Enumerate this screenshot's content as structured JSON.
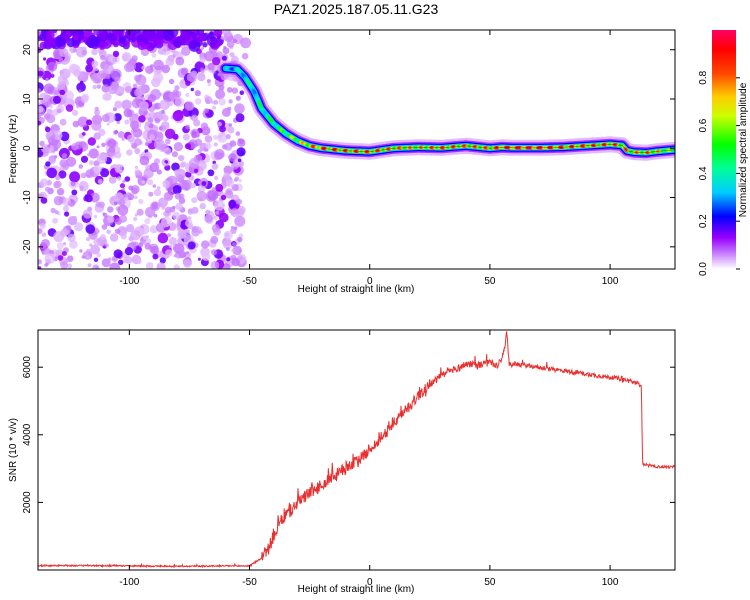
{
  "figure": {
    "title": "PAZ1.2025.187.05.11.G23"
  },
  "chart_data": [
    {
      "type": "heatmap",
      "name": "spectrogram",
      "xlabel": "Height of straight line (km)",
      "ylabel": "Frequency (Hz)",
      "xlim": [
        -138,
        127
      ],
      "ylim": [
        -24.5,
        24
      ],
      "x_ticks": [
        -100,
        -50,
        0,
        50,
        100
      ],
      "y_ticks": [
        -20,
        -10,
        0,
        10,
        20
      ],
      "colorbar": {
        "label": "Normalized spectral amplitude",
        "range": [
          0,
          1
        ],
        "ticks": [
          0.0,
          0.2,
          0.4,
          0.6,
          0.8
        ],
        "tick_labels": [
          "0.0",
          "0.2",
          "0.4",
          "0.6",
          "0.8"
        ],
        "colors": [
          "#ffffff",
          "#9900ff",
          "#0000ff",
          "#00ffff",
          "#00ff00",
          "#ffff00",
          "#ff8000",
          "#ff0000",
          "#ff0066"
        ]
      },
      "noise_region": {
        "x_from": -138,
        "x_to": -53,
        "amplitude": [
          0.05,
          0.25
        ]
      },
      "signal_track": {
        "x": [
          -60,
          -55,
          -52,
          -48,
          -45,
          -40,
          -35,
          -30,
          -25,
          -20,
          -10,
          0,
          10,
          20,
          30,
          40,
          50,
          55,
          60,
          70,
          80,
          90,
          100,
          105,
          107,
          110,
          115,
          120,
          127
        ],
        "frequency": [
          16.2,
          16.0,
          14.5,
          11.5,
          8.0,
          5.0,
          3.0,
          1.5,
          0.5,
          0.0,
          -0.5,
          -0.7,
          0.0,
          0.2,
          0.1,
          0.5,
          0.0,
          0.2,
          0.1,
          0.1,
          0.2,
          0.5,
          0.8,
          0.6,
          -0.5,
          -0.8,
          -0.9,
          -0.6,
          -0.3
        ],
        "amplitude": [
          0.35,
          0.4,
          0.45,
          0.45,
          0.5,
          0.55,
          0.6,
          0.7,
          0.85,
          0.95,
          0.9,
          0.9,
          0.85,
          0.8,
          0.9,
          0.85,
          0.85,
          0.95,
          1.0,
          1.0,
          0.95,
          0.9,
          0.9,
          0.85,
          0.85,
          0.8,
          0.85,
          0.8,
          0.6
        ]
      }
    },
    {
      "type": "line",
      "name": "snr",
      "xlabel": "Height of straight line (km)",
      "ylabel": "SNR (10 * v/v)",
      "xlim": [
        -138,
        127
      ],
      "ylim": [
        0,
        7100
      ],
      "x_ticks": [
        -100,
        -50,
        0,
        50,
        100
      ],
      "y_ticks": [
        2000,
        4000,
        6000
      ],
      "color": "#e83030",
      "series": [
        {
          "x": [
            -138,
            -120,
            -100,
            -80,
            -60,
            -50,
            -45,
            -42,
            -40,
            -38,
            -36,
            -34,
            -32,
            -30,
            -28,
            -25,
            -22,
            -20,
            -17,
            -15,
            -12,
            -10,
            -7,
            -5,
            -2,
            0,
            3,
            5,
            8,
            10,
            13,
            15,
            18,
            20,
            23,
            25,
            28,
            30,
            33,
            35,
            38,
            40,
            43,
            45,
            48,
            50,
            53,
            55,
            56,
            57,
            58,
            60,
            65,
            70,
            75,
            80,
            85,
            90,
            95,
            100,
            105,
            110,
            112,
            113,
            113.5,
            115,
            120,
            127
          ],
          "y": [
            130,
            130,
            120,
            110,
            120,
            120,
            350,
            650,
            1000,
            1300,
            1550,
            1700,
            1800,
            2000,
            2100,
            2300,
            2400,
            2500,
            2650,
            2750,
            2900,
            3050,
            3150,
            3250,
            3400,
            3600,
            3750,
            3950,
            4150,
            4350,
            4550,
            4750,
            4950,
            5150,
            5350,
            5500,
            5650,
            5750,
            5850,
            5950,
            6000,
            6100,
            6100,
            6050,
            6100,
            6150,
            6000,
            6300,
            6500,
            7050,
            6100,
            6100,
            6050,
            6000,
            5950,
            5900,
            5850,
            5800,
            5750,
            5700,
            5650,
            5550,
            5500,
            5500,
            3150,
            3100,
            3050,
            3050
          ]
        }
      ]
    }
  ]
}
